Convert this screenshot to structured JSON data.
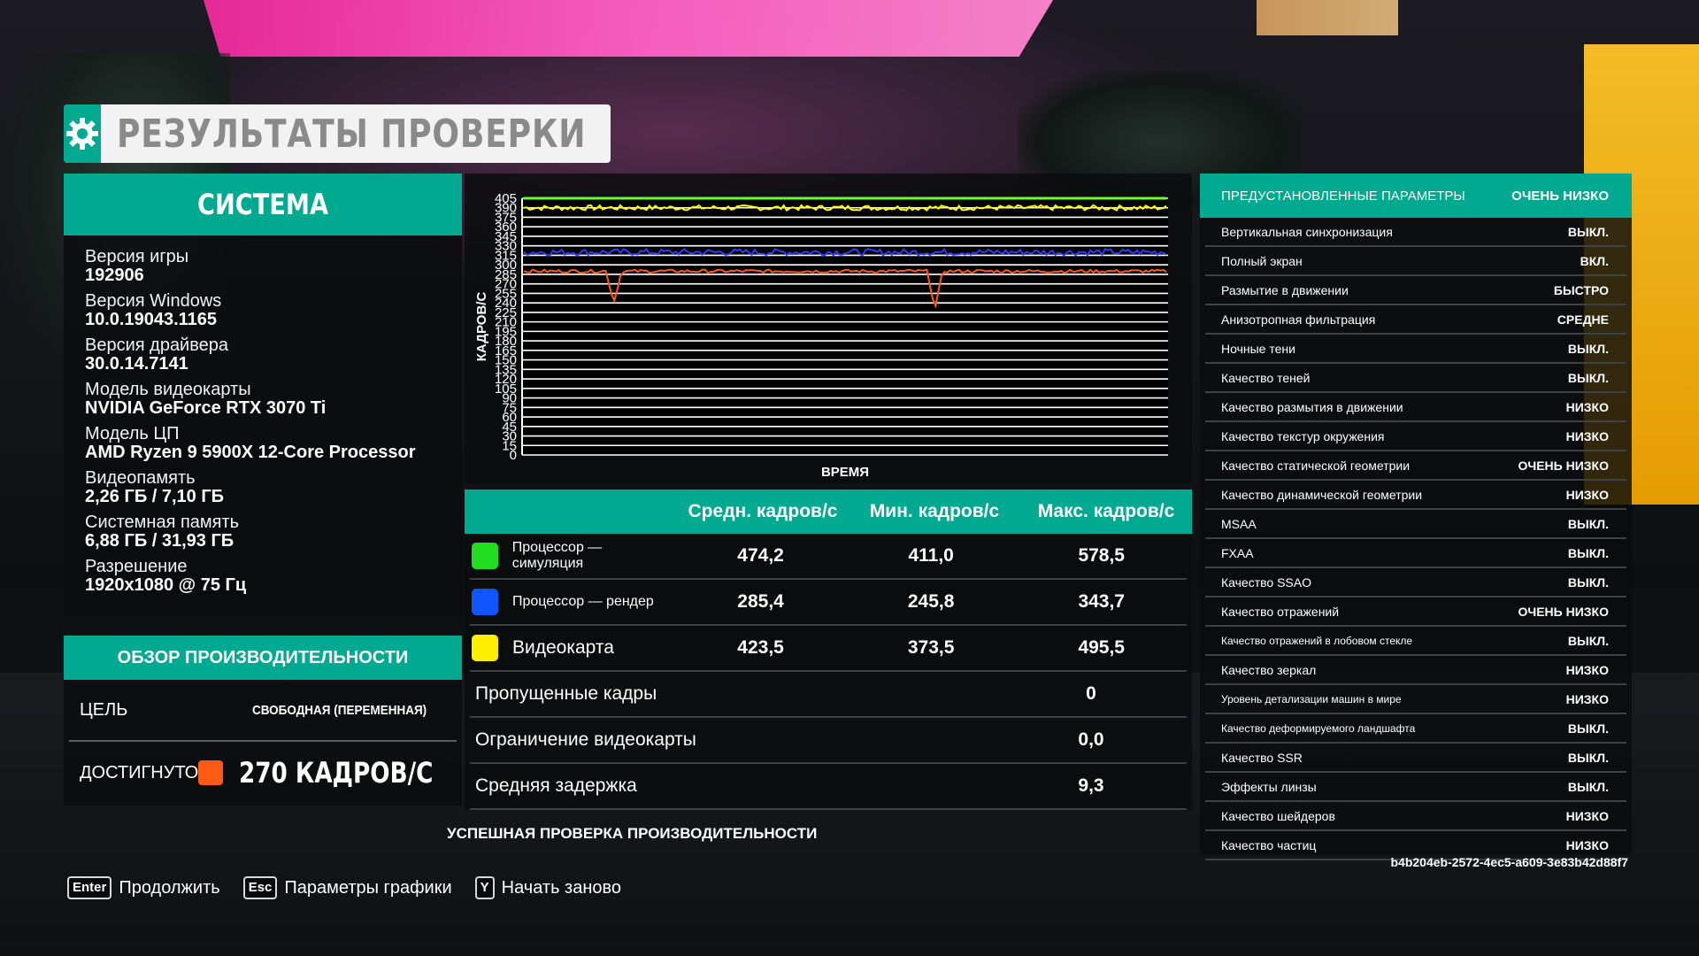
{
  "title": "РЕЗУЛЬТАТЫ ПРОВЕРКИ",
  "system": {
    "header": "СИСТЕМА",
    "items": [
      {
        "label": "Версия игры",
        "value": "192906"
      },
      {
        "label": "Версия Windows",
        "value": "10.0.19043.1165"
      },
      {
        "label": "Версия драйвера",
        "value": "30.0.14.7141"
      },
      {
        "label": "Модель видеокарты",
        "value": "NVIDIA GeForce RTX 3070 Ti"
      },
      {
        "label": "Модель ЦП",
        "value": "AMD Ryzen 9 5900X 12-Core Processor"
      },
      {
        "label": "Видеопамять",
        "value": "2,26 ГБ / 7,10 ГБ"
      },
      {
        "label": "Системная память",
        "value": "6,88 ГБ / 31,93 ГБ"
      },
      {
        "label": "Разрешение",
        "value": "1920x1080 @ 75 Гц"
      }
    ]
  },
  "performance": {
    "header": "ОБЗОР ПРОИЗВОДИТЕЛЬНОСТИ",
    "target_label": "ЦЕЛЬ",
    "target_value": "СВОБОДНАЯ (ПЕРЕМЕННАЯ)",
    "achieved_label": "ДОСТИГНУТО",
    "achieved_value": "270 КАДРОВ/С",
    "achieved_color": "#ff5a14"
  },
  "chart_data": {
    "type": "line",
    "xlabel": "ВРЕМЯ",
    "ylabel": "КАДРОВ/С",
    "ylim": [
      0,
      405
    ],
    "yticks": [
      "405",
      "390",
      "375",
      "360",
      "345",
      "330",
      "315",
      "300",
      "285",
      "270",
      "255",
      "240",
      "225",
      "210",
      "195",
      "180",
      "165",
      "150",
      "135",
      "120",
      "105",
      "90",
      "75",
      "60",
      "45",
      "30",
      "15",
      "0"
    ],
    "series": [
      {
        "color": "#6cff2a",
        "baseline": 405
      },
      {
        "color": "#ffff00",
        "baseline": 390,
        "noise": 8
      },
      {
        "color": "#2a3cff",
        "baseline": 320,
        "noise": 10
      },
      {
        "color": "#ff5a14",
        "baseline": 290,
        "noise": 5,
        "dips": [
          {
            "at": 0.14,
            "to": 240
          },
          {
            "at": 0.64,
            "to": 230
          }
        ]
      }
    ],
    "grid": true
  },
  "stats": {
    "headers": [
      "Средн. кадров/с",
      "Мин. кадров/с",
      "Макс. кадров/с"
    ],
    "rows": [
      {
        "name": "Процессор — симуляция",
        "color": "#22dd22",
        "avg": "474,2",
        "min": "411,0",
        "max": "578,5",
        "big": false
      },
      {
        "name": "Процессор — рендер",
        "color": "#1155ff",
        "avg": "285,4",
        "min": "245,8",
        "max": "343,7",
        "big": false
      },
      {
        "name": "Видеокарта",
        "color": "#ffee00",
        "avg": "423,5",
        "min": "373,5",
        "max": "495,5",
        "big": true
      }
    ],
    "extra": [
      {
        "name": "Пропущенные кадры",
        "value": "0"
      },
      {
        "name": "Ограничение видеокарты",
        "value": "0,0"
      },
      {
        "name": "Средняя задержка",
        "value": "9,3"
      }
    ]
  },
  "success_text": "УСПЕШНАЯ ПРОВЕРКА ПРОИЗВОДИТЕЛЬНОСТИ",
  "presets": {
    "header_label": "ПРЕДУСТАНОВЛЕННЫЕ ПАРАМЕТРЫ",
    "header_value": "ОЧЕНЬ НИЗКО",
    "items": [
      {
        "k": "Вертикальная синхронизация",
        "v": "ВЫКЛ.",
        "small": false
      },
      {
        "k": "Полный экран",
        "v": "ВКЛ.",
        "small": false
      },
      {
        "k": "Размытие в движении",
        "v": "БЫСТРО",
        "small": false
      },
      {
        "k": "Анизотропная фильтрация",
        "v": "СРЕДНЕ",
        "small": false
      },
      {
        "k": "Ночные тени",
        "v": "ВЫКЛ.",
        "small": false
      },
      {
        "k": "Качество теней",
        "v": "ВЫКЛ.",
        "small": false
      },
      {
        "k": "Качество размытия в движении",
        "v": "НИЗКО",
        "small": false
      },
      {
        "k": "Качество текстур окружения",
        "v": "НИЗКО",
        "small": false
      },
      {
        "k": "Качество статической геометрии",
        "v": "ОЧЕНЬ НИЗКО",
        "small": false
      },
      {
        "k": "Качество динамической геометрии",
        "v": "НИЗКО",
        "small": false
      },
      {
        "k": "MSAA",
        "v": "ВЫКЛ.",
        "small": false
      },
      {
        "k": "FXAA",
        "v": "ВЫКЛ.",
        "small": false
      },
      {
        "k": "Качество SSAO",
        "v": "ВЫКЛ.",
        "small": false
      },
      {
        "k": "Качество отражений",
        "v": "ОЧЕНЬ НИЗКО",
        "small": false
      },
      {
        "k": "Качество отражений в лобовом стекле",
        "v": "ВЫКЛ.",
        "small": true
      },
      {
        "k": "Качество зеркал",
        "v": "НИЗКО",
        "small": false
      },
      {
        "k": "Уровень детализации машин в мире",
        "v": "НИЗКО",
        "small": true
      },
      {
        "k": "Качество деформируемого ландшафта",
        "v": "ВЫКЛ.",
        "small": true
      },
      {
        "k": "Качество SSR",
        "v": "ВЫКЛ.",
        "small": false
      },
      {
        "k": "Эффекты линзы",
        "v": "ВЫКЛ.",
        "small": false
      },
      {
        "k": "Качество шейдеров",
        "v": "НИЗКО",
        "small": false
      },
      {
        "k": "Качество частиц",
        "v": "НИЗКО",
        "small": false
      }
    ]
  },
  "guid": "b4b204eb-2572-4ec5-a609-3e83b42d88f7",
  "controls": [
    {
      "key": "Enter",
      "label": "Продолжить"
    },
    {
      "key": "Esc",
      "label": "Параметры графики"
    },
    {
      "key": "Y",
      "label": "Начать заново"
    }
  ]
}
